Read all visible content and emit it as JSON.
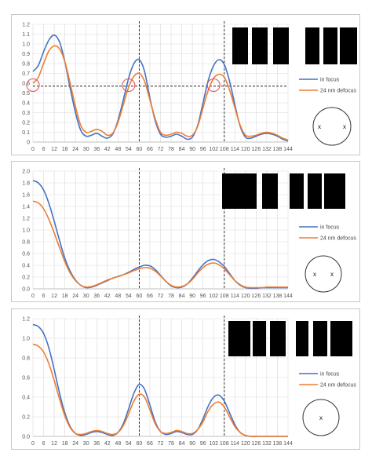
{
  "colors": {
    "in_focus": "#4472c4",
    "defocus": "#ed7d31",
    "grid": "#d9d9d9",
    "guide": "#222222",
    "highlight_circle": "#e05050",
    "pattern": "#000000"
  },
  "chart_data": [
    {
      "type": "line",
      "x_ticks": [
        0,
        6,
        12,
        18,
        24,
        30,
        36,
        42,
        48,
        54,
        60,
        66,
        72,
        78,
        84,
        90,
        96,
        102,
        108,
        114,
        120,
        126,
        132,
        138,
        144
      ],
      "ylim": [
        0,
        1.2
      ],
      "y_ticks": [
        "0",
        "0.1",
        "0.2",
        "0.3",
        "0.4",
        "0.5",
        "0.6",
        "0.7",
        "0.8",
        "0.9",
        "1.0",
        "1.1",
        "1.2"
      ],
      "grid": true,
      "legend_position": "right",
      "series": [
        {
          "name": "in focus",
          "x": [
            0,
            3,
            6,
            9,
            12,
            15,
            18,
            21,
            24,
            27,
            30,
            33,
            36,
            39,
            42,
            45,
            48,
            51,
            54,
            57,
            60,
            63,
            66,
            69,
            72,
            75,
            78,
            81,
            84,
            87,
            90,
            93,
            96,
            99,
            102,
            105,
            108,
            111,
            114,
            117,
            120,
            123,
            126,
            129,
            132,
            135,
            138,
            141,
            144
          ],
          "values": [
            0.72,
            0.78,
            0.92,
            1.04,
            1.09,
            1.02,
            0.82,
            0.55,
            0.3,
            0.12,
            0.06,
            0.07,
            0.09,
            0.06,
            0.04,
            0.08,
            0.22,
            0.43,
            0.65,
            0.8,
            0.84,
            0.72,
            0.45,
            0.22,
            0.08,
            0.05,
            0.06,
            0.08,
            0.06,
            0.03,
            0.05,
            0.17,
            0.4,
            0.63,
            0.78,
            0.84,
            0.79,
            0.62,
            0.38,
            0.16,
            0.05,
            0.04,
            0.06,
            0.08,
            0.09,
            0.08,
            0.06,
            0.03,
            0.01
          ]
        },
        {
          "name": "24 nm defocus",
          "x": [
            0,
            3,
            6,
            9,
            12,
            15,
            18,
            21,
            24,
            27,
            30,
            33,
            36,
            39,
            42,
            45,
            48,
            51,
            54,
            57,
            60,
            63,
            66,
            69,
            72,
            75,
            78,
            81,
            84,
            87,
            90,
            93,
            96,
            99,
            102,
            105,
            108,
            111,
            114,
            117,
            120,
            123,
            126,
            129,
            132,
            135,
            138,
            141,
            144
          ],
          "values": [
            0.6,
            0.66,
            0.8,
            0.93,
            0.98,
            0.95,
            0.82,
            0.6,
            0.36,
            0.17,
            0.1,
            0.11,
            0.13,
            0.11,
            0.07,
            0.09,
            0.2,
            0.38,
            0.56,
            0.67,
            0.7,
            0.62,
            0.43,
            0.24,
            0.1,
            0.07,
            0.08,
            0.1,
            0.09,
            0.06,
            0.07,
            0.16,
            0.35,
            0.53,
            0.65,
            0.69,
            0.66,
            0.53,
            0.35,
            0.17,
            0.07,
            0.06,
            0.07,
            0.09,
            0.1,
            0.09,
            0.07,
            0.04,
            0.02
          ]
        }
      ],
      "highlight_circles": [
        {
          "x": 0,
          "y": 0.58
        },
        {
          "x": 54,
          "y": 0.58
        },
        {
          "x": 102,
          "y": 0.58
        }
      ],
      "reference_lines": {
        "vertical": [
          60,
          108
        ],
        "horizontal": 0.57
      },
      "legend": [
        "in focus",
        "24 nm defocus"
      ],
      "pupil_markers": [
        "x",
        "x"
      ],
      "bar_groups": [
        3,
        3
      ]
    },
    {
      "type": "line",
      "x_ticks": [
        0,
        6,
        12,
        18,
        24,
        30,
        36,
        42,
        48,
        54,
        60,
        66,
        72,
        78,
        84,
        90,
        96,
        102,
        108,
        114,
        120,
        126,
        132,
        138,
        144
      ],
      "ylim": [
        0,
        2.0
      ],
      "y_ticks": [
        "0.0",
        "0.2",
        "0.4",
        "0.6",
        "0.8",
        "1.0",
        "1.2",
        "1.4",
        "1.6",
        "1.8",
        "2.0"
      ],
      "grid": true,
      "legend_position": "right",
      "series": [
        {
          "name": "in focus",
          "x": [
            0,
            3,
            6,
            9,
            12,
            15,
            18,
            21,
            24,
            27,
            30,
            33,
            36,
            39,
            42,
            45,
            48,
            51,
            54,
            57,
            60,
            63,
            66,
            69,
            72,
            75,
            78,
            81,
            84,
            87,
            90,
            93,
            96,
            99,
            102,
            105,
            108,
            111,
            114,
            117,
            120,
            123,
            126,
            129,
            132,
            135,
            138,
            141,
            144
          ],
          "values": [
            1.84,
            1.8,
            1.68,
            1.45,
            1.15,
            0.82,
            0.52,
            0.3,
            0.15,
            0.06,
            0.02,
            0.03,
            0.06,
            0.1,
            0.14,
            0.18,
            0.21,
            0.24,
            0.28,
            0.33,
            0.37,
            0.4,
            0.39,
            0.33,
            0.23,
            0.13,
            0.05,
            0.02,
            0.03,
            0.08,
            0.18,
            0.3,
            0.41,
            0.48,
            0.5,
            0.46,
            0.38,
            0.26,
            0.14,
            0.06,
            0.02,
            0.01,
            0.01,
            0.02,
            0.02,
            0.02,
            0.02,
            0.02,
            0.02
          ]
        },
        {
          "name": "24 nm defocus",
          "x": [
            0,
            3,
            6,
            9,
            12,
            15,
            18,
            21,
            24,
            27,
            30,
            33,
            36,
            39,
            42,
            45,
            48,
            51,
            54,
            57,
            60,
            63,
            66,
            69,
            72,
            75,
            78,
            81,
            84,
            87,
            90,
            93,
            96,
            99,
            102,
            105,
            108,
            111,
            114,
            117,
            120,
            123,
            126,
            129,
            132,
            135,
            138,
            141,
            144
          ],
          "values": [
            1.49,
            1.46,
            1.36,
            1.18,
            0.95,
            0.7,
            0.46,
            0.27,
            0.14,
            0.06,
            0.03,
            0.04,
            0.07,
            0.11,
            0.15,
            0.18,
            0.21,
            0.24,
            0.27,
            0.31,
            0.34,
            0.36,
            0.35,
            0.3,
            0.22,
            0.13,
            0.06,
            0.03,
            0.04,
            0.08,
            0.16,
            0.27,
            0.36,
            0.42,
            0.44,
            0.41,
            0.34,
            0.24,
            0.14,
            0.07,
            0.03,
            0.02,
            0.02,
            0.02,
            0.03,
            0.03,
            0.03,
            0.03,
            0.03
          ]
        }
      ],
      "highlight_circles": [],
      "reference_lines": {
        "vertical": [
          60,
          108
        ],
        "horizontal": null
      },
      "legend": [
        "in focus",
        "24 nm defocus"
      ],
      "pupil_markers": [
        "x",
        "x"
      ],
      "bar_groups": [
        3,
        3
      ]
    },
    {
      "type": "line",
      "x_ticks": [
        0,
        6,
        12,
        18,
        24,
        30,
        36,
        42,
        48,
        54,
        60,
        66,
        72,
        78,
        84,
        90,
        96,
        102,
        108,
        114,
        120,
        126,
        132,
        138,
        144
      ],
      "ylim": [
        0,
        1.2
      ],
      "y_ticks": [
        "0.0",
        "0.2",
        "0.4",
        "0.6",
        "0.8",
        "1.0",
        "1.2"
      ],
      "grid": true,
      "legend_position": "right",
      "series": [
        {
          "name": "in focus",
          "x": [
            0,
            3,
            6,
            9,
            12,
            15,
            18,
            21,
            24,
            27,
            30,
            33,
            36,
            39,
            42,
            45,
            48,
            51,
            54,
            57,
            60,
            63,
            66,
            69,
            72,
            75,
            78,
            81,
            84,
            87,
            90,
            93,
            96,
            99,
            102,
            105,
            108,
            111,
            114,
            117,
            120,
            123,
            126,
            129,
            132,
            135,
            138,
            141,
            144
          ],
          "values": [
            1.14,
            1.12,
            1.05,
            0.9,
            0.68,
            0.44,
            0.24,
            0.1,
            0.03,
            0.01,
            0.02,
            0.04,
            0.05,
            0.04,
            0.02,
            0.01,
            0.04,
            0.13,
            0.28,
            0.44,
            0.53,
            0.48,
            0.32,
            0.15,
            0.05,
            0.02,
            0.03,
            0.05,
            0.04,
            0.02,
            0.02,
            0.07,
            0.18,
            0.31,
            0.4,
            0.42,
            0.36,
            0.24,
            0.12,
            0.04,
            0.01,
            0.0,
            0.0,
            0.0,
            0.0,
            0.0,
            0.0,
            0.0,
            0.0
          ]
        },
        {
          "name": "24 nm defocus",
          "x": [
            0,
            3,
            6,
            9,
            12,
            15,
            18,
            21,
            24,
            27,
            30,
            33,
            36,
            39,
            42,
            45,
            48,
            51,
            54,
            57,
            60,
            63,
            66,
            69,
            72,
            75,
            78,
            81,
            84,
            87,
            90,
            93,
            96,
            99,
            102,
            105,
            108,
            111,
            114,
            117,
            120,
            123,
            126,
            129,
            132,
            135,
            138,
            141,
            144
          ],
          "values": [
            0.94,
            0.92,
            0.86,
            0.74,
            0.57,
            0.38,
            0.21,
            0.09,
            0.03,
            0.02,
            0.03,
            0.05,
            0.06,
            0.05,
            0.03,
            0.02,
            0.04,
            0.11,
            0.23,
            0.36,
            0.43,
            0.4,
            0.27,
            0.13,
            0.05,
            0.03,
            0.04,
            0.06,
            0.05,
            0.03,
            0.03,
            0.07,
            0.15,
            0.26,
            0.33,
            0.35,
            0.3,
            0.2,
            0.1,
            0.04,
            0.01,
            0.0,
            0.0,
            0.0,
            0.0,
            0.0,
            0.0,
            0.0,
            0.0
          ]
        }
      ],
      "highlight_circles": [],
      "reference_lines": {
        "vertical": [
          60,
          108
        ],
        "horizontal": null
      },
      "legend": [
        "in focus",
        "24 nm defocus"
      ],
      "pupil_markers": [
        "x"
      ],
      "bar_groups": [
        3,
        3
      ]
    }
  ]
}
